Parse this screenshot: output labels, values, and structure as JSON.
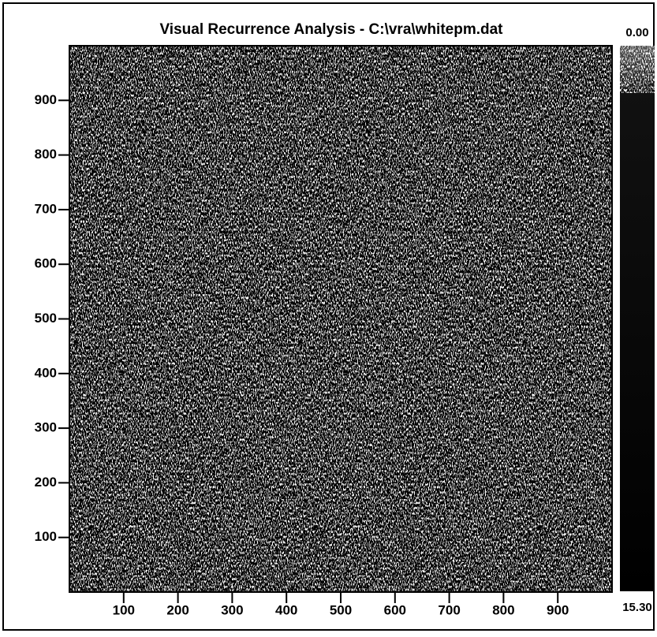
{
  "chart_data": {
    "type": "recurrence",
    "title": "Visual Recurrence Analysis  -  C:\\vra\\whitepm.dat",
    "xlim": [
      0,
      1000
    ],
    "xticks": [
      100,
      200,
      300,
      400,
      500,
      600,
      700,
      800,
      900
    ],
    "ylim": [
      0,
      1000
    ],
    "yticks": [
      100,
      200,
      300,
      400,
      500,
      600,
      700,
      800,
      900
    ],
    "colorbar_ticks": [
      {
        "value": 0,
        "label": "0.00"
      },
      {
        "value": 15.3,
        "label": "15.30"
      }
    ]
  }
}
